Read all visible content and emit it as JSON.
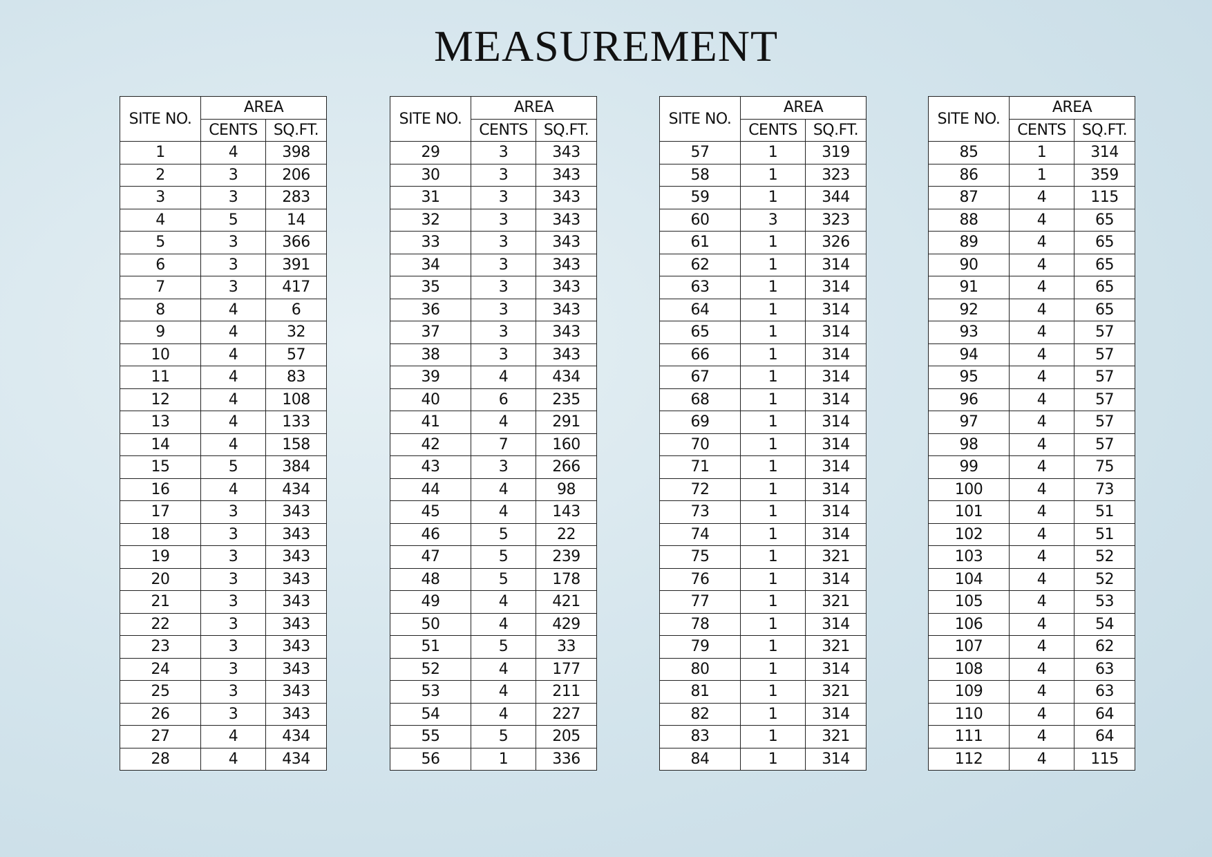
{
  "title": "MEASUREMENT",
  "tables": [
    {
      "header": {
        "site_no": "SITE NO.",
        "area": "AREA",
        "cents": "CENTS",
        "sqft": "SQ.FT."
      },
      "rows": [
        [
          1,
          4,
          398
        ],
        [
          2,
          3,
          206
        ],
        [
          3,
          3,
          283
        ],
        [
          4,
          5,
          14
        ],
        [
          5,
          3,
          366
        ],
        [
          6,
          3,
          391
        ],
        [
          7,
          3,
          417
        ],
        [
          8,
          4,
          6
        ],
        [
          9,
          4,
          32
        ],
        [
          10,
          4,
          57
        ],
        [
          11,
          4,
          83
        ],
        [
          12,
          4,
          108
        ],
        [
          13,
          4,
          133
        ],
        [
          14,
          4,
          158
        ],
        [
          15,
          5,
          384
        ],
        [
          16,
          4,
          434
        ],
        [
          17,
          3,
          343
        ],
        [
          18,
          3,
          343
        ],
        [
          19,
          3,
          343
        ],
        [
          20,
          3,
          343
        ],
        [
          21,
          3,
          343
        ],
        [
          22,
          3,
          343
        ],
        [
          23,
          3,
          343
        ],
        [
          24,
          3,
          343
        ],
        [
          25,
          3,
          343
        ],
        [
          26,
          3,
          343
        ],
        [
          27,
          4,
          434
        ],
        [
          28,
          4,
          434
        ]
      ]
    },
    {
      "header": {
        "site_no": "SITE NO.",
        "area": "AREA",
        "cents": "CENTS",
        "sqft": "SQ.FT."
      },
      "rows": [
        [
          29,
          3,
          343
        ],
        [
          30,
          3,
          343
        ],
        [
          31,
          3,
          343
        ],
        [
          32,
          3,
          343
        ],
        [
          33,
          3,
          343
        ],
        [
          34,
          3,
          343
        ],
        [
          35,
          3,
          343
        ],
        [
          36,
          3,
          343
        ],
        [
          37,
          3,
          343
        ],
        [
          38,
          3,
          343
        ],
        [
          39,
          4,
          434
        ],
        [
          40,
          6,
          235
        ],
        [
          41,
          4,
          291
        ],
        [
          42,
          7,
          160
        ],
        [
          43,
          3,
          266
        ],
        [
          44,
          4,
          98
        ],
        [
          45,
          4,
          143
        ],
        [
          46,
          5,
          22
        ],
        [
          47,
          5,
          239
        ],
        [
          48,
          5,
          178
        ],
        [
          49,
          4,
          421
        ],
        [
          50,
          4,
          429
        ],
        [
          51,
          5,
          33
        ],
        [
          52,
          4,
          177
        ],
        [
          53,
          4,
          211
        ],
        [
          54,
          4,
          227
        ],
        [
          55,
          5,
          205
        ],
        [
          56,
          1,
          336
        ]
      ]
    },
    {
      "header": {
        "site_no": "SITE NO.",
        "area": "AREA",
        "cents": "CENTS",
        "sqft": "SQ.FT."
      },
      "rows": [
        [
          57,
          1,
          319
        ],
        [
          58,
          1,
          323
        ],
        [
          59,
          1,
          344
        ],
        [
          60,
          3,
          323
        ],
        [
          61,
          1,
          326
        ],
        [
          62,
          1,
          314
        ],
        [
          63,
          1,
          314
        ],
        [
          64,
          1,
          314
        ],
        [
          65,
          1,
          314
        ],
        [
          66,
          1,
          314
        ],
        [
          67,
          1,
          314
        ],
        [
          68,
          1,
          314
        ],
        [
          69,
          1,
          314
        ],
        [
          70,
          1,
          314
        ],
        [
          71,
          1,
          314
        ],
        [
          72,
          1,
          314
        ],
        [
          73,
          1,
          314
        ],
        [
          74,
          1,
          314
        ],
        [
          75,
          1,
          321
        ],
        [
          76,
          1,
          314
        ],
        [
          77,
          1,
          321
        ],
        [
          78,
          1,
          314
        ],
        [
          79,
          1,
          321
        ],
        [
          80,
          1,
          314
        ],
        [
          81,
          1,
          321
        ],
        [
          82,
          1,
          314
        ],
        [
          83,
          1,
          321
        ],
        [
          84,
          1,
          314
        ]
      ]
    },
    {
      "header": {
        "site_no": "SITE NO.",
        "area": "AREA",
        "cents": "CENTS",
        "sqft": "SQ.FT."
      },
      "rows": [
        [
          85,
          1,
          314
        ],
        [
          86,
          1,
          359
        ],
        [
          87,
          4,
          115
        ],
        [
          88,
          4,
          65
        ],
        [
          89,
          4,
          65
        ],
        [
          90,
          4,
          65
        ],
        [
          91,
          4,
          65
        ],
        [
          92,
          4,
          65
        ],
        [
          93,
          4,
          57
        ],
        [
          94,
          4,
          57
        ],
        [
          95,
          4,
          57
        ],
        [
          96,
          4,
          57
        ],
        [
          97,
          4,
          57
        ],
        [
          98,
          4,
          57
        ],
        [
          99,
          4,
          75
        ],
        [
          100,
          4,
          73
        ],
        [
          101,
          4,
          51
        ],
        [
          102,
          4,
          51
        ],
        [
          103,
          4,
          52
        ],
        [
          104,
          4,
          52
        ],
        [
          105,
          4,
          53
        ],
        [
          106,
          4,
          54
        ],
        [
          107,
          4,
          62
        ],
        [
          108,
          4,
          63
        ],
        [
          109,
          4,
          63
        ],
        [
          110,
          4,
          64
        ],
        [
          111,
          4,
          64
        ],
        [
          112,
          4,
          115
        ]
      ]
    }
  ]
}
